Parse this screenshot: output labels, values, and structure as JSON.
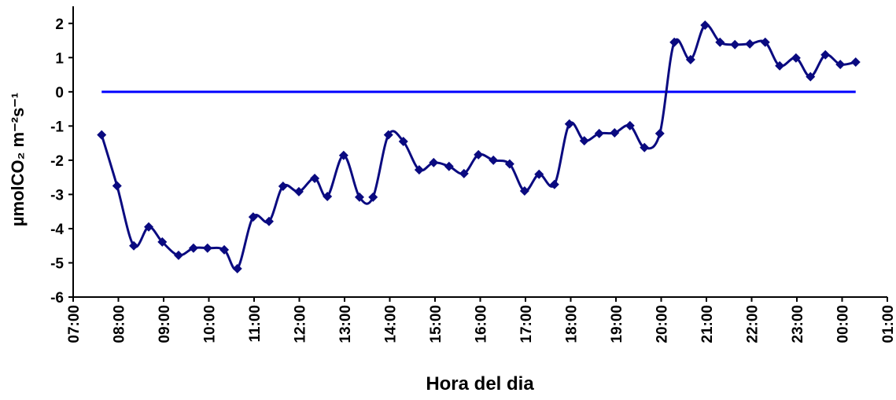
{
  "chart_data": {
    "type": "line",
    "x_label": "Hora del dia",
    "y_label": "µmolCO₂ m⁻²s⁻¹",
    "x": [
      7.63,
      7.97,
      8.34,
      8.67,
      8.97,
      9.33,
      9.66,
      9.97,
      10.34,
      10.63,
      10.98,
      11.33,
      11.64,
      11.99,
      12.34,
      12.62,
      12.98,
      13.33,
      13.63,
      13.97,
      14.3,
      14.65,
      14.97,
      15.31,
      15.64,
      15.96,
      16.29,
      16.65,
      16.98,
      17.3,
      17.64,
      17.97,
      18.3,
      18.63,
      18.97,
      19.31,
      19.63,
      19.97,
      20.29,
      20.65,
      20.97,
      21.3,
      21.63,
      21.96,
      22.3,
      22.62,
      22.98,
      23.3,
      23.63,
      23.96,
      24.3
    ],
    "series": [
      {
        "color": "#0a0a80",
        "values": [
          -1.26,
          -2.75,
          -4.5,
          -3.95,
          -4.39,
          -4.78,
          -4.57,
          -4.57,
          -4.62,
          -5.17,
          -3.66,
          -3.79,
          -2.76,
          -2.92,
          -2.53,
          -3.06,
          -1.86,
          -3.08,
          -3.08,
          -1.26,
          -1.45,
          -2.28,
          -2.07,
          -2.18,
          -2.39,
          -1.84,
          -2.0,
          -2.11,
          -2.9,
          -2.41,
          -2.71,
          -0.94,
          -1.43,
          -1.22,
          -1.2,
          -0.99,
          -1.63,
          -1.22,
          1.45,
          0.94,
          1.95,
          1.45,
          1.38,
          1.4,
          1.45,
          0.76,
          0.99,
          0.44,
          1.08,
          0.8,
          0.87
        ]
      }
    ],
    "reference_line": {
      "value": 0,
      "color": "#0000ff"
    },
    "xlim": [
      7,
      25
    ],
    "xticks": [
      {
        "value": 7,
        "label": "07:00"
      },
      {
        "value": 8,
        "label": "08:00"
      },
      {
        "value": 9,
        "label": "09:00"
      },
      {
        "value": 10,
        "label": "10:00"
      },
      {
        "value": 11,
        "label": "11:00"
      },
      {
        "value": 12,
        "label": "12:00"
      },
      {
        "value": 13,
        "label": "13:00"
      },
      {
        "value": 14,
        "label": "14:00"
      },
      {
        "value": 15,
        "label": "15:00"
      },
      {
        "value": 16,
        "label": "16:00"
      },
      {
        "value": 17,
        "label": "17:00"
      },
      {
        "value": 18,
        "label": "18:00"
      },
      {
        "value": 19,
        "label": "19:00"
      },
      {
        "value": 20,
        "label": "20:00"
      },
      {
        "value": 21,
        "label": "21:00"
      },
      {
        "value": 22,
        "label": "22:00"
      },
      {
        "value": 23,
        "label": "23:00"
      },
      {
        "value": 24,
        "label": "00:00"
      },
      {
        "value": 25,
        "label": "01:00"
      }
    ],
    "ylim": [
      -6,
      2.5
    ],
    "yticks": [
      -6,
      -5,
      -4,
      -3,
      -2,
      -1,
      0,
      1,
      2
    ]
  }
}
